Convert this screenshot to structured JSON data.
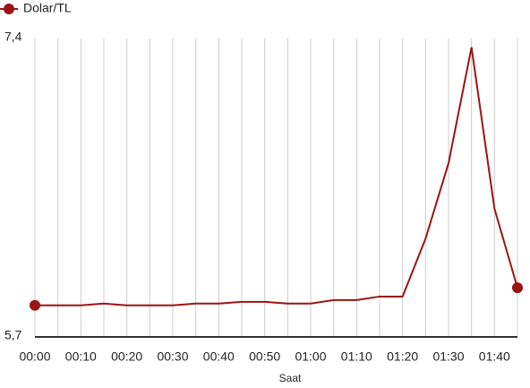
{
  "chart_data": {
    "type": "line",
    "x_label": "Saat",
    "categories": [
      "00:00",
      null,
      "00:10",
      null,
      "00:20",
      null,
      "00:30",
      null,
      "00:40",
      null,
      "00:50",
      null,
      "01:00",
      null,
      "01:10",
      null,
      "01:20",
      null,
      "01:30",
      null,
      "01:40",
      null
    ],
    "series": [
      {
        "name": "Dolar/TL",
        "color": "#9b1414",
        "values": [
          5.88,
          5.88,
          5.88,
          5.89,
          5.88,
          5.88,
          5.88,
          5.89,
          5.89,
          5.9,
          5.9,
          5.89,
          5.89,
          5.91,
          5.91,
          5.93,
          5.93,
          6.26,
          6.69,
          7.35,
          6.43,
          5.98
        ]
      }
    ],
    "ylim": [
      5.7,
      7.4
    ],
    "yticks": [
      {
        "value": 5.7,
        "label": "5,7"
      },
      {
        "value": 7.4,
        "label": "7,4"
      }
    ],
    "legend": "top-left"
  }
}
